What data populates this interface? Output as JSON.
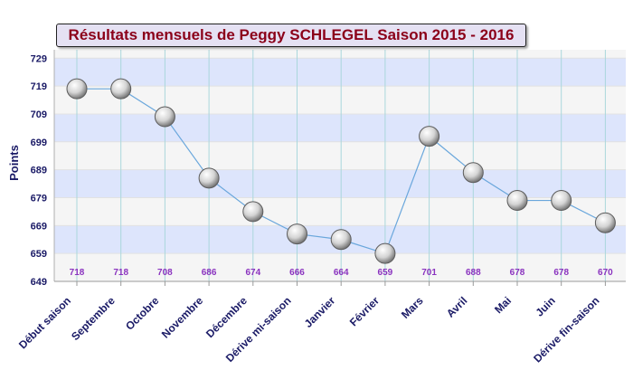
{
  "chart_data": {
    "type": "line",
    "title": "Résultats mensuels de Peggy SCHLEGEL Saison 2015 - 2016",
    "ylabel": "Points",
    "xlabel": "",
    "categories": [
      "Début saison",
      "Septembre",
      "Octobre",
      "Novembre",
      "Décembre",
      "Dérive mi-saison",
      "Janvier",
      "Février",
      "Mars",
      "Avril",
      "Mai",
      "Juin",
      "Dérive fin-saison"
    ],
    "series": [
      {
        "values": [
          718,
          718,
          708,
          686,
          674,
          666,
          664,
          659,
          701,
          688,
          678,
          678,
          670
        ]
      }
    ],
    "data_labels": [
      "718",
      "718",
      "708",
      "686",
      "674",
      "666",
      "664",
      "659",
      "701",
      "688",
      "678",
      "678",
      "670"
    ],
    "yticks": [
      649,
      659,
      669,
      679,
      689,
      699,
      709,
      719,
      729
    ],
    "ylim": [
      649,
      732
    ],
    "grid": true,
    "legend": "none",
    "colors": {
      "line": "#6aa7dc",
      "band_blue": "#dde5fc",
      "band_light": "#f5f5f5",
      "vgrid": "#aad7dc",
      "axis_label": "#1a1a66",
      "value_label": "#8a33bf",
      "title_text": "#8b0019",
      "title_bg": "#e5e1f3"
    }
  }
}
